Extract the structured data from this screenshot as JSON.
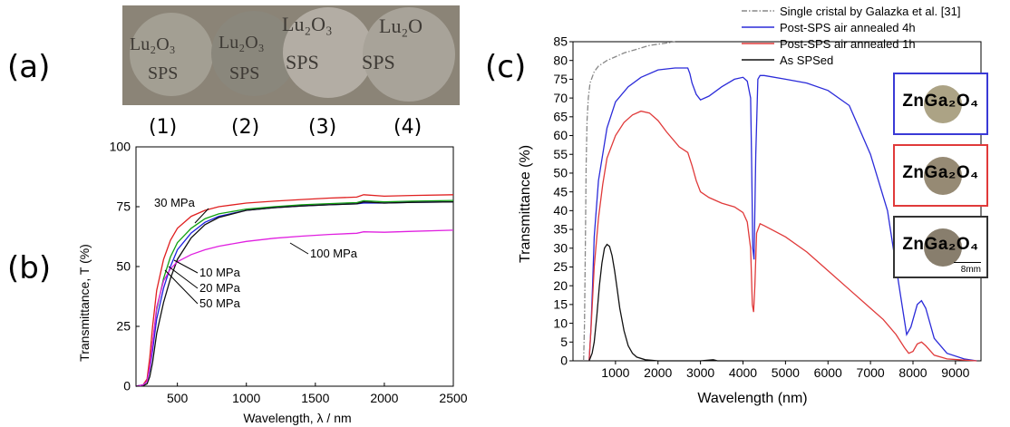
{
  "panels": {
    "a": {
      "label": "(a)",
      "samples": [
        {
          "num": "(1)",
          "lines": [
            "Lu₂O₃",
            "SPS"
          ]
        },
        {
          "num": "(2)",
          "lines": [
            "Lu₂O₃",
            "SPS"
          ]
        },
        {
          "num": "(3)",
          "lines": [
            "Lu₂O₃",
            "SPS"
          ]
        },
        {
          "num": "(4)",
          "lines": [
            "Lu₂O",
            "SPS"
          ]
        }
      ]
    },
    "b": {
      "label": "(b)"
    },
    "c": {
      "label": "(c)",
      "inset": {
        "items": [
          {
            "text": "ZnGa₂O₄",
            "frame_color": "#3a3ad6"
          },
          {
            "text": "ZnGa₂O₄",
            "frame_color": "#e03a3a"
          },
          {
            "text": "ZnGa₂O₄",
            "frame_color": "#333333"
          }
        ],
        "scale_bar": "8mm"
      }
    }
  },
  "chart_data": [
    {
      "type": "line",
      "title": "",
      "xlabel": "Wavelength, λ / nm",
      "ylabel": "Transmittance, T (%)",
      "xlim": [
        200,
        2500
      ],
      "ylim": [
        0,
        100
      ],
      "xticks": [
        500,
        1000,
        1500,
        2000,
        2500
      ],
      "yticks": [
        0,
        25,
        50,
        75,
        100
      ],
      "grid": false,
      "x": [
        200,
        250,
        280,
        300,
        320,
        350,
        400,
        450,
        500,
        600,
        700,
        800,
        1000,
        1200,
        1400,
        1600,
        1800,
        1850,
        2000,
        2200,
        2500
      ],
      "series": [
        {
          "name": "30 MPa",
          "color": "#e02020",
          "values": [
            0,
            0.5,
            3,
            12,
            25,
            40,
            53,
            61,
            66,
            71,
            73.5,
            75,
            76.5,
            77.3,
            78,
            78.6,
            79,
            80,
            79.4,
            79.7,
            80
          ]
        },
        {
          "name": "10 MPa",
          "color": "#10a010",
          "values": [
            0,
            0.5,
            2,
            8,
            18,
            32,
            45,
            54,
            60,
            66,
            70,
            72,
            74,
            75,
            75.8,
            76.3,
            76.7,
            77.5,
            77,
            77.3,
            77.6
          ]
        },
        {
          "name": "20 MPa",
          "color": "#2020e0",
          "values": [
            0,
            0.5,
            2,
            7,
            15,
            28,
            41,
            50,
            57,
            64,
            68.5,
            71,
            73.5,
            74.6,
            75.3,
            75.8,
            76.2,
            76.5,
            76.5,
            76.8,
            77
          ]
        },
        {
          "name": "50 MPa",
          "color": "#111111",
          "values": [
            0,
            0.2,
            1,
            4,
            10,
            22,
            35,
            45,
            53,
            62,
            67.5,
            70.5,
            73.5,
            74.6,
            75.3,
            75.8,
            76.2,
            77,
            76.5,
            76.8,
            77
          ]
        },
        {
          "name": "100 MPa",
          "color": "#e020e0",
          "values": [
            0,
            0.5,
            2,
            8,
            18,
            33,
            44,
            49,
            52,
            55,
            57,
            58.5,
            60.5,
            61.8,
            62.7,
            63.4,
            63.9,
            64.5,
            64.3,
            64.7,
            65.2
          ]
        }
      ]
    },
    {
      "type": "line",
      "title": "",
      "xlabel": "Wavelength (nm)",
      "ylabel": "Transmittance (%)",
      "xlim": [
        0,
        9600
      ],
      "ylim": [
        0,
        85
      ],
      "xticks": [
        1000,
        2000,
        3000,
        4000,
        5000,
        6000,
        7000,
        8000,
        9000
      ],
      "yticks": [
        0,
        5,
        10,
        15,
        20,
        25,
        30,
        35,
        40,
        45,
        50,
        55,
        60,
        65,
        70,
        75,
        80,
        85
      ],
      "grid": false,
      "legend_position": "top-right",
      "series": [
        {
          "name": "Single cristal by Galazka et al. [31]",
          "color": "#888888",
          "dash": "dashdot",
          "x": [
            250,
            270,
            290,
            310,
            330,
            360,
            400,
            500,
            600,
            800,
            1000,
            1200,
            1500,
            1800,
            2100,
            2300,
            2400
          ],
          "values": [
            0,
            10,
            30,
            52,
            64,
            70,
            74,
            77,
            78.5,
            80,
            81,
            82,
            83,
            84,
            84.5,
            84.8,
            85
          ]
        },
        {
          "name": "Post-SPS air annealed 4h",
          "color": "#2b2bd9",
          "dash": "solid",
          "x": [
            380,
            420,
            460,
            500,
            600,
            800,
            1000,
            1300,
            1600,
            2000,
            2400,
            2700,
            2750,
            2800,
            2900,
            3000,
            3200,
            3500,
            3800,
            4000,
            4100,
            4180,
            4200,
            4230,
            4260,
            4300,
            4350,
            4400,
            4500,
            5000,
            5500,
            6000,
            6500,
            7000,
            7400,
            7700,
            7850,
            7950,
            8100,
            8200,
            8300,
            8500,
            8800,
            9200,
            9500
          ],
          "values": [
            0,
            8,
            20,
            33,
            48,
            62,
            69,
            73,
            75.5,
            77.5,
            78,
            78,
            76.5,
            74,
            71,
            69.5,
            70.5,
            73,
            75,
            75.5,
            74.5,
            70,
            55,
            30,
            27,
            55,
            75,
            76,
            76,
            75,
            74,
            72,
            68,
            55,
            40,
            18,
            7,
            9,
            15,
            16,
            14,
            6,
            2,
            0.5,
            0
          ]
        },
        {
          "name": "Post-SPS air annealed 1h",
          "color": "#e03a3a",
          "dash": "solid",
          "x": [
            380,
            430,
            500,
            600,
            700,
            800,
            1000,
            1200,
            1400,
            1600,
            1800,
            2000,
            2200,
            2500,
            2700,
            2800,
            2900,
            3000,
            3200,
            3500,
            3800,
            4000,
            4100,
            4180,
            4220,
            4250,
            4280,
            4320,
            4400,
            4500,
            5000,
            5500,
            6000,
            6500,
            7000,
            7300,
            7600,
            7800,
            7900,
            8000,
            8100,
            8200,
            8300,
            8500,
            8800,
            9200,
            9500
          ],
          "values": [
            0,
            10,
            25,
            38,
            47,
            54,
            60,
            63.5,
            65.5,
            66.5,
            66,
            64,
            61,
            57,
            55.5,
            52,
            48,
            45,
            43.5,
            42,
            41,
            39.5,
            37,
            30,
            15,
            13,
            20,
            34,
            36.5,
            36,
            33,
            29,
            24,
            19,
            14,
            11,
            7,
            3.5,
            2,
            2.5,
            4.5,
            5,
            4,
            1.5,
            0.5,
            0.2,
            0
          ]
        },
        {
          "name": "As SPSed",
          "color": "#111111",
          "dash": "solid",
          "x": [
            380,
            450,
            500,
            560,
            620,
            680,
            740,
            800,
            860,
            920,
            980,
            1040,
            1100,
            1200,
            1300,
            1400,
            1500,
            1700,
            2000,
            3000,
            3300,
            3400,
            4000
          ],
          "values": [
            0,
            2,
            5,
            12,
            20,
            26,
            30,
            31,
            30.5,
            28,
            24,
            19,
            14,
            8,
            4,
            2,
            1,
            0.3,
            0,
            0,
            0.3,
            0,
            0
          ]
        }
      ]
    }
  ]
}
